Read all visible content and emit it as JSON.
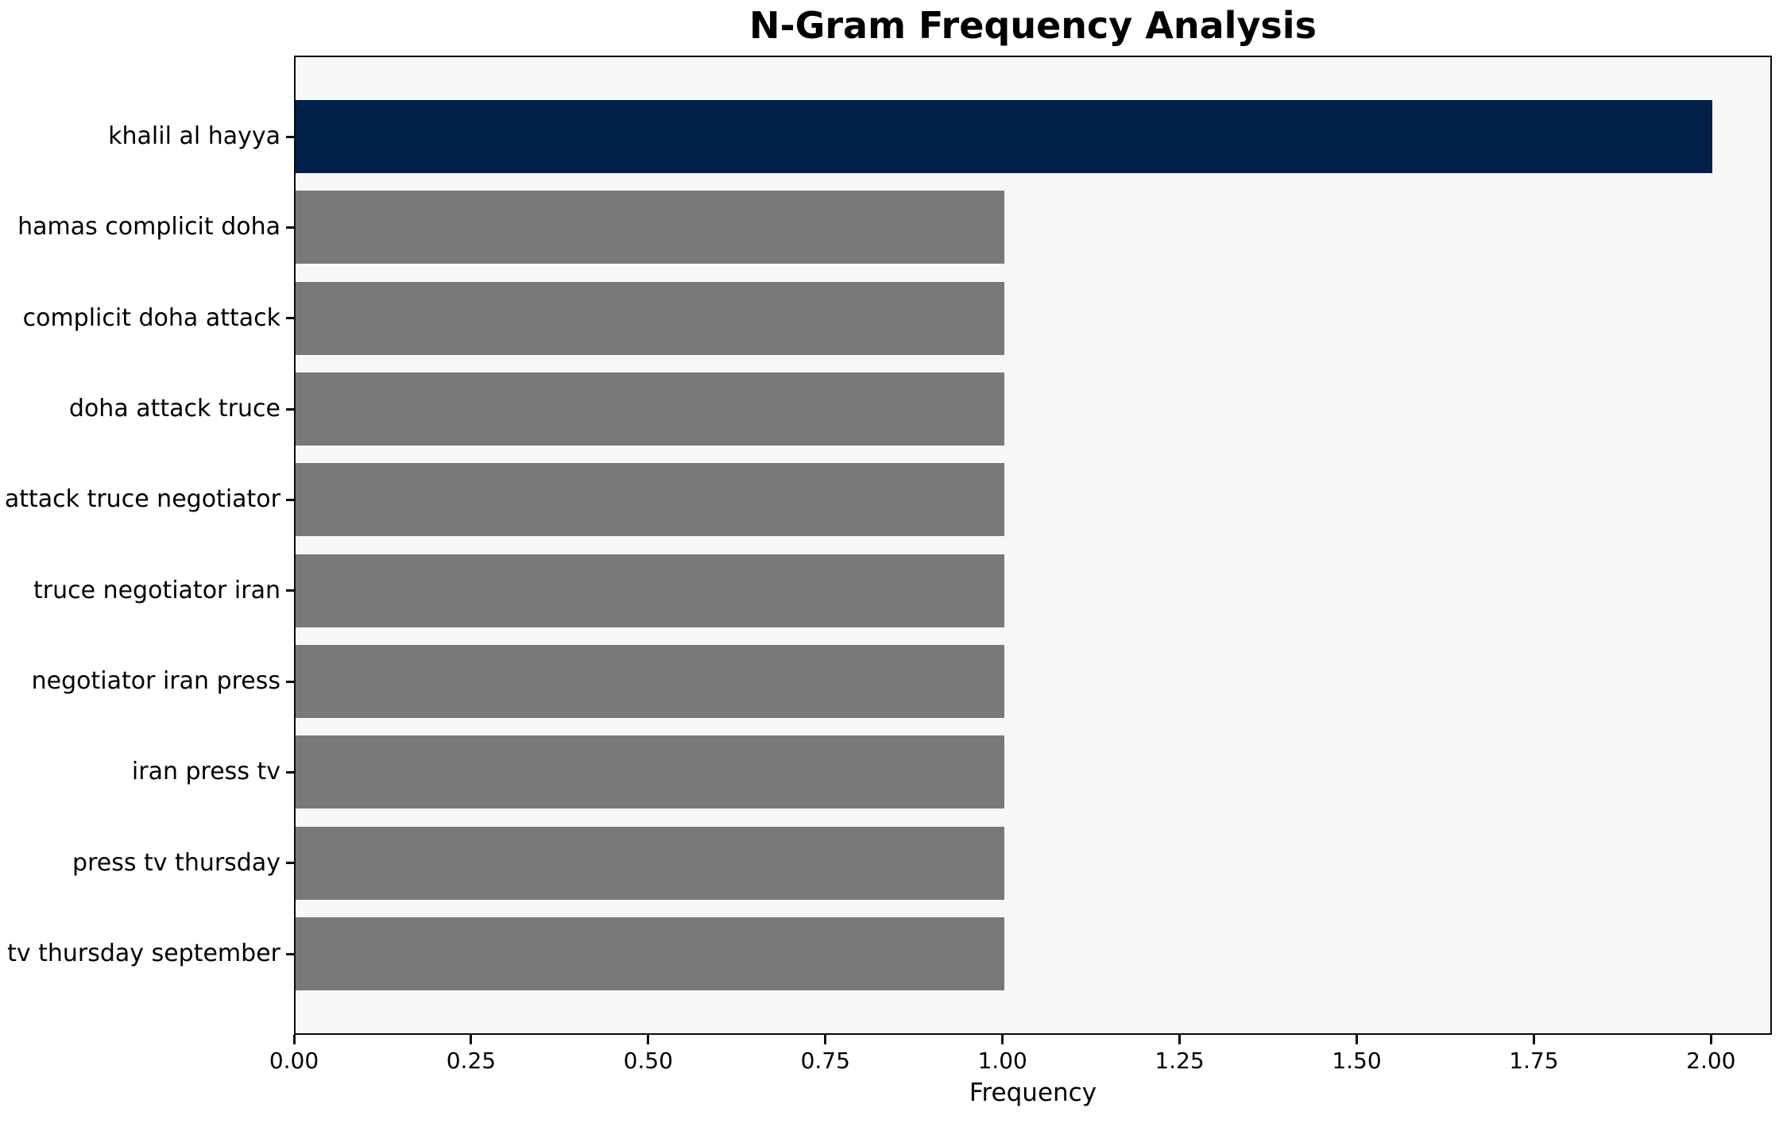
{
  "chart_data": {
    "type": "bar",
    "orientation": "horizontal",
    "title": "N-Gram Frequency Analysis",
    "xlabel": "Frequency",
    "ylabel": "",
    "categories": [
      "khalil al hayya",
      "hamas complicit doha",
      "complicit doha attack",
      "doha attack truce",
      "attack truce negotiator",
      "truce negotiator iran",
      "negotiator iran press",
      "iran press tv",
      "press tv thursday",
      "tv thursday september"
    ],
    "values": [
      2,
      1,
      1,
      1,
      1,
      1,
      1,
      1,
      1,
      1
    ],
    "bar_colors": [
      "#02214a",
      "#7b7977",
      "#7b7977",
      "#7b7977",
      "#7b7977",
      "#7b7977",
      "#7b7977",
      "#7b7977",
      "#7b7977",
      "#7b7977"
    ],
    "xlim": [
      0,
      2.086
    ],
    "xticks": [
      0,
      0.25,
      0.5,
      0.75,
      1.0,
      1.25,
      1.5,
      1.75,
      2.0
    ],
    "xtick_labels": [
      "0.00",
      "0.25",
      "0.50",
      "0.75",
      "1.00",
      "1.25",
      "1.50",
      "1.75",
      "2.00"
    ],
    "grid": false,
    "legend": null,
    "colors": {
      "highlight_bar": "#02214a",
      "default_bar": "#7b7977",
      "plot_background": "#f7f7f7",
      "figure_background": "#ffffff",
      "spine": "#0a0a0a",
      "text": "#000000"
    }
  }
}
